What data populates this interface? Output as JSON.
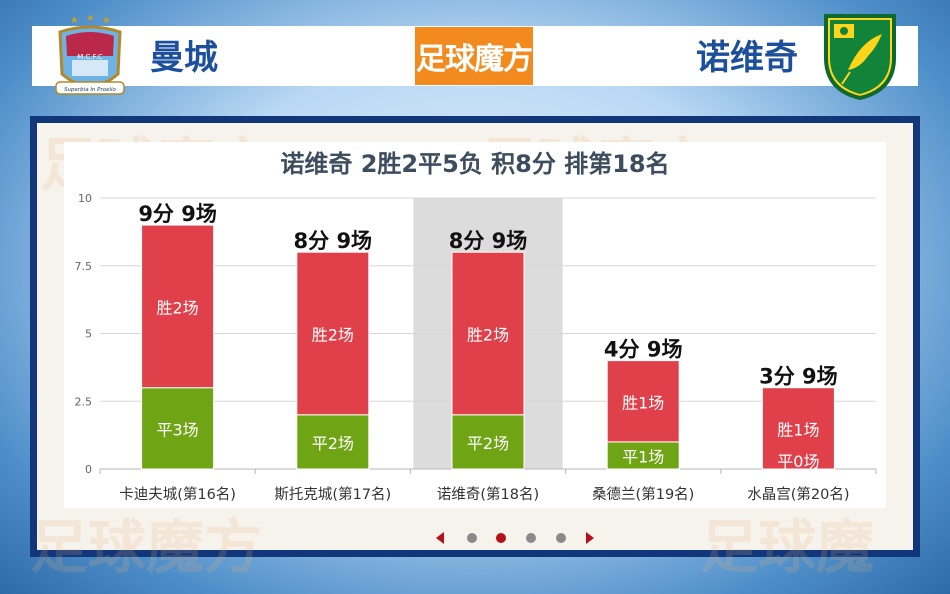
{
  "header": {
    "home_team": "曼城",
    "away_team": "诺维奇",
    "brand": "足球魔方",
    "home_crest_text": "M.C.F.C",
    "home_motto": "Superbia In Proelio"
  },
  "colors": {
    "win": "#e0404a",
    "draw": "#6fa514",
    "highlight": "#dcdcdc",
    "frame": "#11367a",
    "brand": "#f28a1e"
  },
  "chart_data": {
    "type": "bar",
    "title": "诺维奇 2胜2平5负 积8分 排第18名",
    "categories": [
      "卡迪夫城(第16名)",
      "斯托克城(第17名)",
      "诺维奇(第18名)",
      "桑德兰(第19名)",
      "水晶宫(第20名)"
    ],
    "series": [
      {
        "name": "平",
        "values": [
          3,
          2,
          2,
          1,
          0
        ],
        "labels": [
          "平3场",
          "平2场",
          "平2场",
          "平1场",
          "平0场"
        ]
      },
      {
        "name": "胜",
        "values": [
          2,
          2,
          2,
          1,
          1
        ],
        "labels": [
          "胜2场",
          "胜2场",
          "胜2场",
          "胜1场",
          "胜1场"
        ]
      }
    ],
    "totals": [
      9,
      8,
      8,
      4,
      3
    ],
    "total_labels": [
      "9分 9场",
      "8分 9场",
      "8分 9场",
      "4分 9场",
      "3分 9场"
    ],
    "highlight_index": 2,
    "ylim": [
      0,
      10
    ],
    "yticks": [
      0,
      2.5,
      5,
      7.5,
      10
    ],
    "ytick_labels": [
      "0",
      "2.5",
      "5",
      "7.5",
      "10"
    ],
    "grid": true,
    "legend": "none"
  },
  "pager": {
    "count": 4,
    "active": 1
  }
}
